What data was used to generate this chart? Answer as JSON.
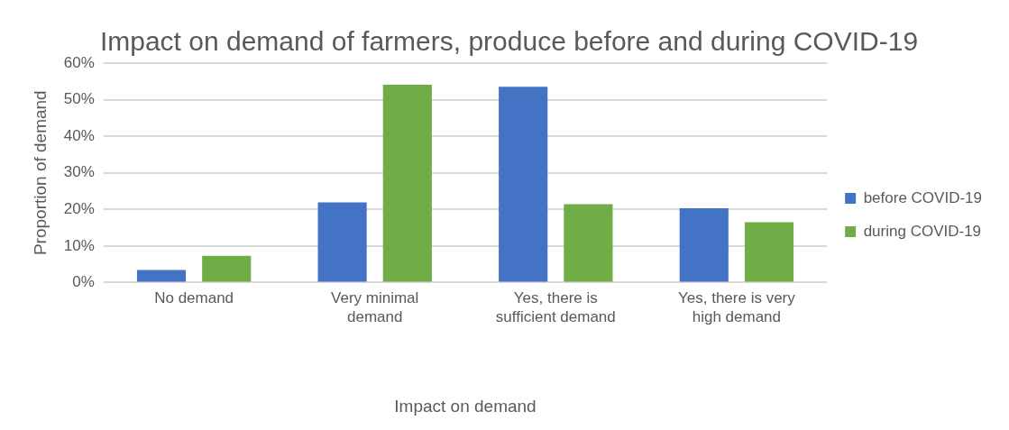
{
  "chart_data": {
    "type": "bar",
    "title": "Impact on demand of farmers, produce before and during COVID-19",
    "xlabel": "Impact on demand",
    "ylabel": "Proportion of demand",
    "categories": [
      "No demand",
      "Very minimal demand",
      "Yes, there is sufficient demand",
      "Yes, there is very high demand"
    ],
    "series": [
      {
        "name": "before COVID-19",
        "color": "#4472c4",
        "values": [
          3.4,
          21.9,
          53.5,
          20.3
        ]
      },
      {
        "name": "during COVID-19",
        "color": "#70ad47",
        "values": [
          7.3,
          54.1,
          21.4,
          16.5
        ]
      }
    ],
    "ylim": [
      0,
      60
    ],
    "yticks": [
      {
        "value": 0,
        "label": "0%"
      },
      {
        "value": 10,
        "label": "10%"
      },
      {
        "value": 20,
        "label": "20%"
      },
      {
        "value": 30,
        "label": "30%"
      },
      {
        "value": 40,
        "label": "40%"
      },
      {
        "value": 50,
        "label": "50%"
      },
      {
        "value": 60,
        "label": "60%"
      }
    ],
    "grid": "y",
    "legend": "right"
  }
}
